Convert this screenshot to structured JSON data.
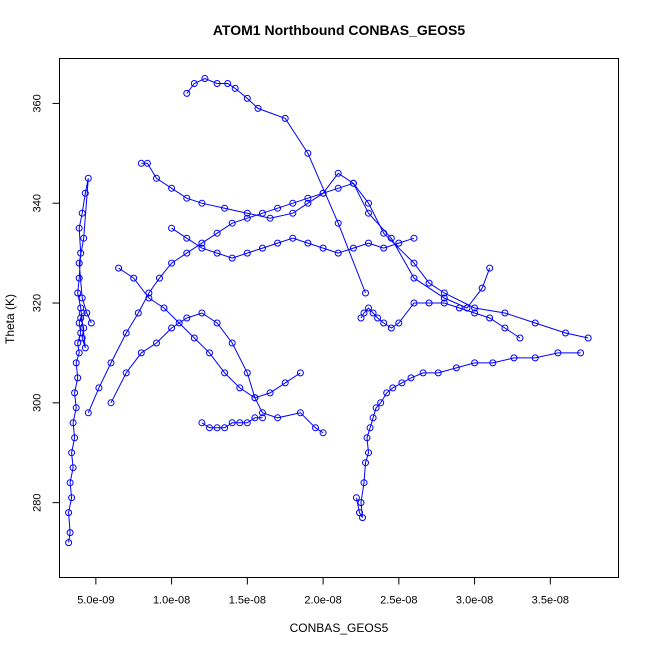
{
  "chart_data": {
    "type": "scatter",
    "title": "ATOM1 Northbound CONBAS_GEOS5",
    "xlabel": "CONBAS_GEOS5",
    "ylabel": "Theta (K)",
    "xlim": [
      2.6e-09,
      3.95e-08
    ],
    "ylim": [
      265,
      369
    ],
    "x_ticks": [
      5e-09,
      1e-08,
      1.5e-08,
      2e-08,
      2.5e-08,
      3e-08,
      3.5e-08
    ],
    "x_tick_labels": [
      "5.0e-09",
      "1.0e-08",
      "1.5e-08",
      "2.0e-08",
      "2.5e-08",
      "3.0e-08",
      "3.5e-08"
    ],
    "y_ticks": [
      280,
      300,
      320,
      340,
      360
    ],
    "y_tick_labels": [
      "280",
      "300",
      "320",
      "340",
      "360"
    ],
    "color": "#0000ff",
    "marker": "open-circle",
    "connected": true,
    "series": [
      {
        "x": [
          3.2e-09,
          3.3e-09,
          3.2e-09,
          3.4e-09,
          3.3e-09,
          3.5e-09,
          3.4e-09,
          3.6e-09,
          3.5e-09,
          3.7e-09,
          3.6e-09,
          3.8e-09,
          3.7e-09,
          3.9e-09,
          3.8e-09,
          4e-09,
          3.9e-09,
          4.1e-09,
          4e-09,
          4.2e-09,
          4.1e-09,
          4.3e-09,
          4e-09,
          3.8e-09,
          3.9e-09,
          4e-09,
          3.9e-09,
          4.1e-09,
          4.3e-09,
          4.5e-09,
          4.2e-09,
          3.9e-09,
          4.1e-09,
          4.4e-09,
          4.7e-09
        ],
        "y": [
          272,
          274,
          278,
          281,
          284,
          287,
          290,
          293,
          296,
          299,
          302,
          305,
          308,
          310,
          312,
          314,
          316,
          318,
          317,
          315,
          313,
          311,
          319,
          322,
          325,
          330,
          335,
          338,
          342,
          345,
          333,
          328,
          321,
          318,
          316
        ]
      },
      {
        "x": [
          4.5e-09,
          5.2e-09,
          6e-09,
          7e-09,
          7.8e-09,
          8.5e-09,
          9.2e-09,
          1e-08,
          1.1e-08,
          1.2e-08,
          1.3e-08,
          1.4e-08,
          1.5e-08,
          1.6e-08,
          1.7e-08,
          1.8e-08,
          1.9e-08,
          2e-08,
          2.1e-08,
          2.2e-08,
          2.3e-08,
          2.4e-08,
          2.6e-08,
          2.7e-08,
          2.8e-08,
          3e-08,
          3.2e-08,
          3.4e-08,
          3.6e-08,
          3.75e-08
        ],
        "y": [
          298,
          303,
          308,
          314,
          318,
          322,
          325,
          328,
          330,
          332,
          334,
          336,
          337,
          338,
          339,
          340,
          341,
          342,
          343,
          344,
          340,
          334,
          328,
          324,
          322,
          319,
          318,
          316,
          314,
          313
        ]
      },
      {
        "x": [
          8e-09,
          8.4e-09,
          9e-09,
          1e-08,
          1.1e-08,
          1.2e-08,
          1.35e-08,
          1.5e-08,
          1.65e-08,
          1.8e-08,
          1.9e-08,
          2e-08,
          2.1e-08,
          2.2e-08,
          2.3e-08,
          2.45e-08,
          2.6e-08,
          2.8e-08,
          2.95e-08,
          3.05e-08,
          3.1e-08
        ],
        "y": [
          348,
          348,
          345,
          343,
          341,
          340,
          339,
          338,
          337,
          338,
          340,
          342,
          346,
          344,
          338,
          333,
          325,
          321,
          319,
          323,
          327
        ]
      },
      {
        "x": [
          1.1e-08,
          1.15e-08,
          1.22e-08,
          1.3e-08,
          1.37e-08,
          1.42e-08,
          1.5e-08,
          1.57e-08,
          1.75e-08,
          1.9e-08,
          2.1e-08,
          2.28e-08
        ],
        "y": [
          362,
          364,
          365,
          364,
          364,
          363,
          361,
          359,
          357,
          350,
          336,
          322
        ]
      },
      {
        "x": [
          6e-09,
          7e-09,
          8e-09,
          9e-09,
          1e-08,
          1.1e-08,
          1.2e-08,
          1.3e-08,
          1.4e-08,
          1.5e-08,
          1.55e-08,
          1.6e-08,
          1.7e-08,
          1.85e-08,
          1.95e-08,
          2e-08
        ],
        "y": [
          300,
          306,
          310,
          312,
          315,
          317,
          318,
          316,
          312,
          306,
          301,
          298,
          297,
          298,
          295,
          294
        ]
      },
      {
        "x": [
          6.5e-09,
          7.5e-09,
          8.5e-09,
          9.5e-09,
          1.05e-08,
          1.15e-08,
          1.25e-08,
          1.35e-08,
          1.45e-08,
          1.55e-08,
          1.65e-08,
          1.75e-08,
          1.85e-08
        ],
        "y": [
          327,
          325,
          321,
          319,
          316,
          313,
          310,
          306,
          303,
          301,
          302,
          304,
          306
        ]
      },
      {
        "x": [
          2.22e-08,
          2.24e-08,
          2.26e-08,
          2.25e-08,
          2.27e-08,
          2.28e-08,
          2.3e-08,
          2.29e-08,
          2.31e-08,
          2.33e-08,
          2.35e-08,
          2.38e-08,
          2.42e-08,
          2.46e-08,
          2.52e-08,
          2.58e-08,
          2.66e-08,
          2.76e-08,
          2.88e-08,
          3e-08,
          3.12e-08,
          3.26e-08,
          3.4e-08,
          3.55e-08,
          3.7e-08
        ],
        "y": [
          281,
          278,
          277,
          280,
          284,
          288,
          290,
          293,
          295,
          297,
          299,
          300,
          302,
          303,
          304,
          305,
          306,
          306,
          307,
          308,
          308,
          309,
          309,
          310,
          310
        ]
      },
      {
        "x": [
          2.25e-08,
          2.27e-08,
          2.3e-08,
          2.33e-08,
          2.36e-08,
          2.4e-08,
          2.45e-08,
          2.5e-08,
          2.6e-08,
          2.7e-08,
          2.8e-08,
          2.9e-08,
          3e-08,
          3.1e-08,
          3.2e-08,
          3.3e-08
        ],
        "y": [
          317,
          318,
          319,
          318,
          317,
          316,
          315,
          316,
          320,
          320,
          320,
          319,
          318,
          317,
          315,
          313
        ]
      },
      {
        "x": [
          1e-08,
          1.1e-08,
          1.2e-08,
          1.3e-08,
          1.4e-08,
          1.5e-08,
          1.6e-08,
          1.7e-08,
          1.8e-08,
          1.9e-08,
          2e-08,
          2.1e-08,
          2.2e-08,
          2.3e-08,
          2.4e-08,
          2.5e-08,
          2.6e-08
        ],
        "y": [
          335,
          333,
          331,
          330,
          329,
          330,
          331,
          332,
          333,
          332,
          331,
          330,
          331,
          332,
          331,
          332,
          333
        ]
      },
      {
        "x": [
          1.2e-08,
          1.25e-08,
          1.3e-08,
          1.35e-08,
          1.4e-08,
          1.45e-08,
          1.5e-08,
          1.55e-08,
          1.6e-08
        ],
        "y": [
          296,
          295,
          295,
          295,
          296,
          296,
          296,
          297,
          297
        ]
      }
    ]
  }
}
